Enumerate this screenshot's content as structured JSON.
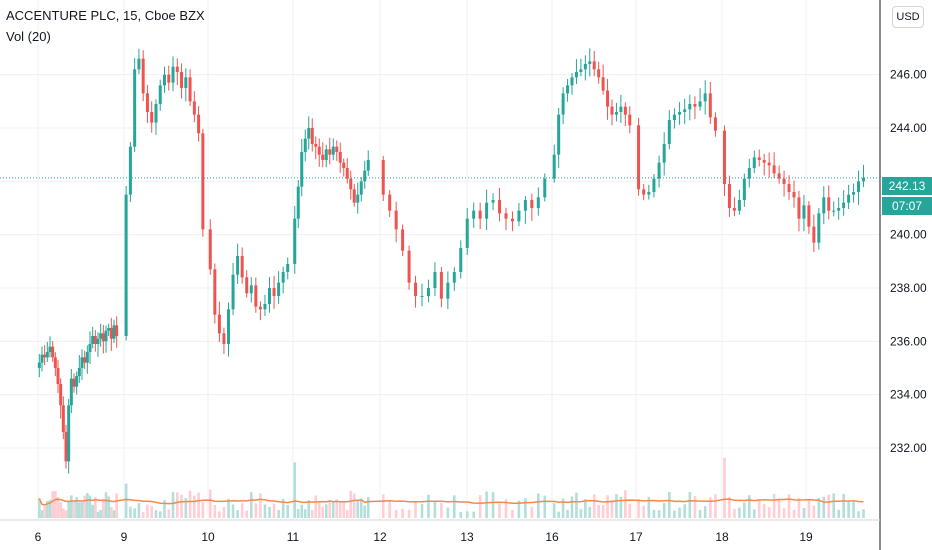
{
  "legend": {
    "symbol": "ACCENTURE PLC, 15, Cboe BZX",
    "volume_indicator": "Vol (20)"
  },
  "currency_button": "USD",
  "last_price": {
    "value": "242.13",
    "countdown": "07:07"
  },
  "colors": {
    "up": "#26a69a",
    "down": "#ef5350",
    "volume_up": "#b2dfdb",
    "volume_down": "#ffcdd2",
    "volume_ma": "#f5894a",
    "grid": "#eef0f3",
    "axis_text": "#131722"
  },
  "chart_data": {
    "type": "candlestick",
    "title": "ACCENTURE PLC, 15, Cboe BZX",
    "currency": "USD",
    "last_price": 242.13,
    "y_ticks": [
      "232.00",
      "234.00",
      "236.00",
      "238.00",
      "240.00",
      "242.00",
      "244.00",
      "246.00"
    ],
    "x_ticks": [
      "6",
      "9",
      "10",
      "11",
      "12",
      "13",
      "16",
      "17",
      "18",
      "19"
    ],
    "ylim": [
      229.3,
      248.8
    ],
    "days": [
      {
        "label": "6",
        "closes": [
          235.2,
          235.5,
          235.4,
          235.6,
          235.8,
          235.4,
          235.0,
          234.4,
          233.6,
          232.6,
          231.5,
          233.6,
          234.6,
          234.3,
          234.7,
          235.0,
          235.4,
          235.2,
          235.6,
          235.9,
          236.2,
          235.9,
          236.1,
          236.3,
          236.0,
          236.4,
          236.5,
          236.1,
          236.6,
          236.2
        ]
      },
      {
        "label": "9",
        "closes": [
          241.5,
          243.3,
          246.2,
          246.6,
          245.3,
          244.6,
          244.2,
          244.9,
          245.6,
          246.0,
          245.7,
          246.3,
          246.1,
          245.5,
          245.9,
          245.0,
          244.5,
          243.8,
          240.2
        ]
      },
      {
        "label": "10",
        "closes": [
          238.7,
          237.0,
          236.3,
          235.9,
          237.2,
          238.5,
          239.2,
          238.4,
          237.8,
          238.1,
          237.3,
          237.2,
          237.4,
          238.0,
          237.7,
          238.2,
          238.6,
          238.9
        ]
      },
      {
        "label": "11",
        "closes": [
          240.6,
          241.8,
          243.1,
          243.6,
          244.0,
          243.4,
          243.3,
          243.0,
          242.8,
          243.2,
          243.0,
          243.3,
          243.1,
          242.7,
          242.5,
          242.1,
          241.7,
          241.2,
          241.5,
          242.0,
          242.4,
          242.8
        ]
      },
      {
        "label": "12",
        "closes": [
          241.5,
          240.9,
          240.2,
          239.4,
          238.2,
          237.7,
          237.7,
          238.0,
          238.6,
          237.6,
          238.2,
          238.6,
          239.5,
          240.6,
          240.9,
          240.6,
          241.2,
          241.3,
          240.8,
          240.6,
          240.5,
          240.9,
          241.3,
          241.0,
          241.4,
          242.1
        ]
      },
      {
        "label": "16",
        "closes": [
          243.0,
          244.5,
          245.3,
          245.6,
          245.9,
          246.1,
          246.2,
          246.4,
          246.5,
          246.2,
          245.9,
          245.4,
          244.8,
          244.5,
          244.6,
          244.8,
          244.5,
          244.1
        ]
      },
      {
        "label": "17",
        "closes": [
          241.7,
          241.5,
          241.6,
          242.1,
          242.7,
          243.4,
          244.3,
          244.5,
          244.6,
          244.7,
          244.9,
          244.8,
          245.0,
          245.3,
          244.4,
          243.9
        ]
      },
      {
        "label": "18",
        "closes": [
          241.9,
          241.0,
          240.9,
          241.3,
          242.1,
          242.5,
          242.9,
          242.8,
          242.7,
          242.6,
          242.3,
          242.1,
          241.9,
          241.6,
          241.4,
          240.6,
          241.1,
          240.3,
          239.7,
          240.8,
          241.4,
          240.9,
          240.9,
          241.0,
          241.2,
          241.5,
          241.6,
          242.0,
          242.13
        ]
      }
    ],
    "volume": {
      "indicator": "Vol (20)",
      "ma_length": 20
    },
    "grid": true,
    "axis_position": "right"
  }
}
